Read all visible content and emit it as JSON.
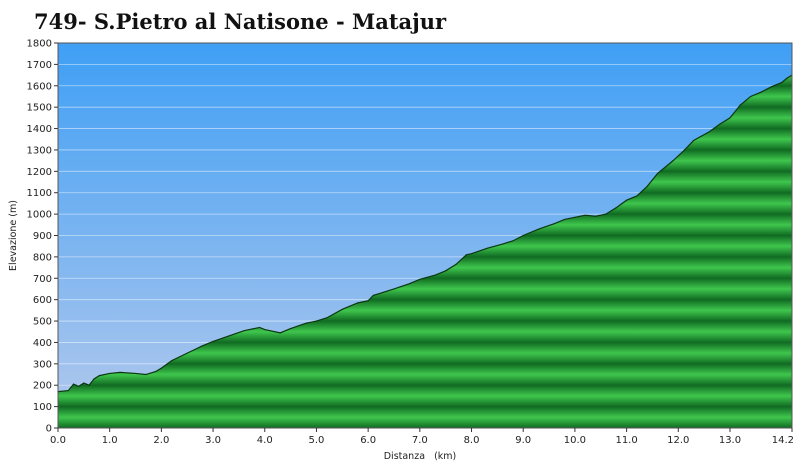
{
  "chart_data": {
    "type": "area",
    "title": "749- S.Pietro al Natisone - Matajur",
    "xlabel": "Distanza   (km)",
    "ylabel": "Elevazione (m)",
    "xlim": [
      0,
      14.2
    ],
    "ylim": [
      0,
      1800
    ],
    "x_ticks": [
      "0.0",
      "1.0",
      "2.0",
      "3.0",
      "4.0",
      "5.0",
      "6.0",
      "7.0",
      "8.0",
      "9.0",
      "10.0",
      "11.0",
      "12.0",
      "13.0",
      "14.2"
    ],
    "y_ticks": [
      "0",
      "100",
      "200",
      "300",
      "400",
      "500",
      "600",
      "700",
      "800",
      "900",
      "1000",
      "1100",
      "1200",
      "1300",
      "1400",
      "1500",
      "1600",
      "1700",
      "1800"
    ],
    "grid": true,
    "colors": {
      "sky_top": "#3f9ff5",
      "sky_bottom": "#b4c9ec",
      "terrain_light": "#3fc64d",
      "terrain_dark": "#106b22",
      "outline": "#0b3812"
    },
    "series": [
      {
        "x": [
          0,
          0.2,
          0.3,
          0.4,
          0.5,
          0.6,
          0.7,
          0.8,
          1.0,
          1.2,
          1.5,
          1.7,
          1.9,
          2.0,
          2.2,
          2.5,
          2.8,
          3.0,
          3.3,
          3.6,
          3.9,
          4.0,
          4.3,
          4.5,
          4.8,
          5.0,
          5.2,
          5.5,
          5.8,
          6.0,
          6.1,
          6.3,
          6.5,
          6.8,
          7.0,
          7.3,
          7.5,
          7.7,
          7.9,
          8.0,
          8.3,
          8.6,
          8.8,
          9.0,
          9.3,
          9.6,
          9.8,
          10.0,
          10.2,
          10.4,
          10.6,
          10.8,
          11.0,
          11.2,
          11.4,
          11.6,
          11.9,
          12.1,
          12.3,
          12.6,
          12.8,
          13.0,
          13.2,
          13.4,
          13.6,
          13.8,
          14.0,
          14.1,
          14.2
        ],
        "values": [
          170,
          175,
          205,
          195,
          210,
          200,
          230,
          245,
          255,
          260,
          255,
          250,
          265,
          280,
          315,
          350,
          385,
          405,
          430,
          455,
          470,
          460,
          445,
          465,
          490,
          500,
          515,
          555,
          585,
          595,
          620,
          635,
          650,
          675,
          695,
          715,
          735,
          765,
          810,
          815,
          840,
          860,
          875,
          900,
          930,
          955,
          975,
          985,
          995,
          990,
          1000,
          1030,
          1065,
          1085,
          1130,
          1190,
          1250,
          1295,
          1345,
          1385,
          1420,
          1450,
          1510,
          1550,
          1570,
          1595,
          1615,
          1635,
          1650
        ]
      }
    ]
  }
}
